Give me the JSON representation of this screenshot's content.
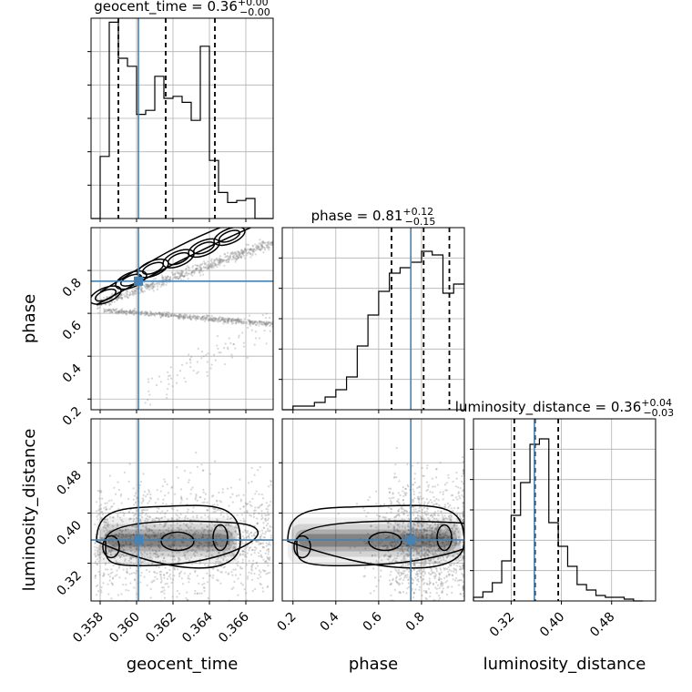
{
  "chart_data": {
    "type": "corner",
    "parameters": [
      {
        "name": "geocent_time",
        "axis_label": "geocent_time",
        "title": {
          "prefix": "geocent_time = 0.36",
          "sup": "+0.00",
          "sub": "−0.00"
        },
        "range": [
          0.3575,
          0.3675
        ],
        "ticks": [
          0.358,
          0.36,
          0.362,
          0.364,
          0.366
        ],
        "tick_labels": [
          "0.358",
          "0.360",
          "0.362",
          "0.364",
          "0.366"
        ],
        "quantiles": [
          0.359,
          0.3616,
          0.3643
        ],
        "truth": 0.3601,
        "histogram": {
          "edges": [
            0.3575,
            0.358,
            0.3585,
            0.359,
            0.3595,
            0.36,
            0.3605,
            0.361,
            0.3615,
            0.362,
            0.3625,
            0.363,
            0.3635,
            0.364,
            0.3645,
            0.365,
            0.3655,
            0.366,
            0.3665,
            0.367,
            0.3675
          ],
          "counts": [
            0.0,
            0.31,
            0.98,
            0.8,
            0.76,
            0.52,
            0.54,
            0.71,
            0.6,
            0.61,
            0.58,
            0.49,
            0.86,
            0.29,
            0.13,
            0.08,
            0.09,
            0.1,
            0.0,
            0.0
          ]
        }
      },
      {
        "name": "phase",
        "axis_label": "phase",
        "title": {
          "prefix": "phase = 0.81",
          "sup": "+0.12",
          "sub": "−0.15"
        },
        "range": [
          0.15,
          1.0
        ],
        "ticks": [
          0.2,
          0.4,
          0.6,
          0.8
        ],
        "tick_labels": [
          "0.2",
          "0.4",
          "0.6",
          "0.8"
        ],
        "quantiles": [
          0.66,
          0.81,
          0.93
        ],
        "truth": 0.75,
        "histogram": {
          "edges": [
            0.15,
            0.2,
            0.25,
            0.3,
            0.35,
            0.4,
            0.45,
            0.5,
            0.55,
            0.6,
            0.65,
            0.7,
            0.75,
            0.8,
            0.85,
            0.9,
            0.95,
            1.0
          ],
          "counts": [
            0.0,
            0.02,
            0.02,
            0.04,
            0.07,
            0.11,
            0.18,
            0.35,
            0.52,
            0.65,
            0.75,
            0.78,
            0.81,
            0.87,
            0.85,
            0.64,
            0.69
          ]
        }
      },
      {
        "name": "luminosity_distance",
        "axis_label": "luminosity_distance",
        "title": {
          "prefix": "luminosity_distance = 0.36",
          "sup": "+0.04",
          "sub": "−0.03"
        },
        "range": [
          0.26,
          0.55
        ],
        "ticks": [
          0.32,
          0.4,
          0.48
        ],
        "tick_labels": [
          "0.32",
          "0.40",
          "0.48"
        ],
        "quantiles": [
          0.325,
          0.358,
          0.395
        ],
        "truth": 0.357,
        "histogram": {
          "edges": [
            0.26,
            0.275,
            0.29,
            0.305,
            0.32,
            0.335,
            0.35,
            0.365,
            0.38,
            0.395,
            0.41,
            0.425,
            0.44,
            0.455,
            0.47,
            0.485,
            0.5,
            0.515,
            0.53
          ],
          "counts": [
            0.02,
            0.05,
            0.1,
            0.22,
            0.47,
            0.65,
            0.86,
            0.89,
            0.43,
            0.3,
            0.19,
            0.09,
            0.06,
            0.03,
            0.02,
            0.02,
            0.01,
            0.0
          ]
        }
      }
    ],
    "grid": true,
    "colors": {
      "truth": "#4682b4",
      "histogram": "#000000",
      "points": "#8c8c8c"
    }
  }
}
